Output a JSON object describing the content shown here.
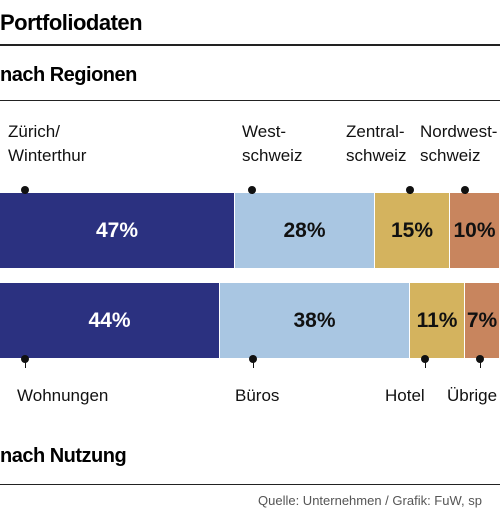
{
  "title": "Portfoliodaten",
  "source": "Quelle: Unternehmen / Grafik: FuW, sp",
  "chart_data": [
    {
      "type": "stacked_bar",
      "title": "nach Regionen",
      "label_side": "top",
      "series": [
        {
          "name": "Zürich/\nWinterthur",
          "color": "#2b3180",
          "values": [
            47
          ],
          "value_labels": [
            "47%"
          ]
        },
        {
          "name": "West-\nschweiz",
          "color": "#a9c6e2",
          "values": [
            28
          ],
          "value_labels": [
            "28%"
          ]
        },
        {
          "name": "Zentral-\nschweiz",
          "color": "#d4b35e",
          "values": [
            15
          ],
          "value_labels": [
            "15%"
          ]
        },
        {
          "name": "Nordwest-\nschweiz",
          "color": "#c8855e",
          "values": [
            10
          ],
          "value_labels": [
            "10%"
          ]
        }
      ]
    },
    {
      "type": "stacked_bar",
      "title": "nach Nutzung",
      "label_side": "bottom",
      "series": [
        {
          "name": "Wohnungen",
          "color": "#2b3180",
          "values": [
            44
          ],
          "value_labels": [
            "44%"
          ]
        },
        {
          "name": "Büros",
          "color": "#a9c6e2",
          "values": [
            38
          ],
          "value_labels": [
            "38%"
          ]
        },
        {
          "name": "Hotel",
          "color": "#d4b35e",
          "values": [
            11
          ],
          "value_labels": [
            "11%"
          ]
        },
        {
          "name": "Übrige",
          "color": "#c8855e",
          "values": [
            7
          ],
          "value_labels": [
            "7%"
          ]
        }
      ]
    }
  ]
}
